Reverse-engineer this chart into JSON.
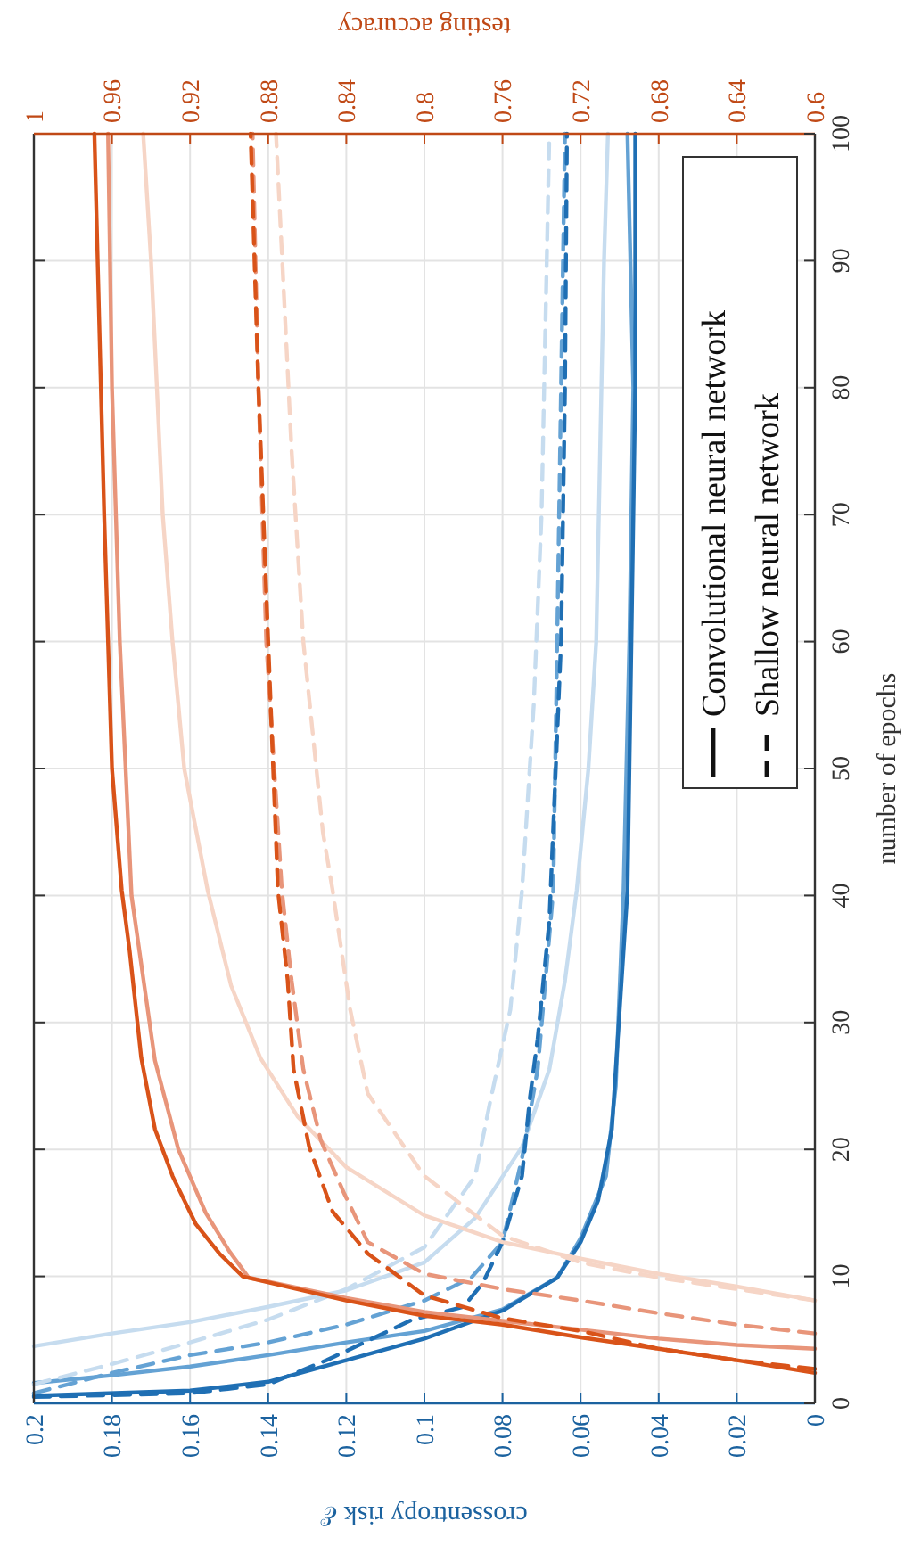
{
  "chart_data": {
    "type": "line",
    "xlabel": "crossentropy risk ℰ",
    "x2label": "testing accuracy",
    "ylabel": "number of epochs",
    "xlim": [
      0.2,
      0
    ],
    "xticks": [
      0.2,
      0.18,
      0.16,
      0.14,
      0.12,
      0.1,
      0.08,
      0.06,
      0.04,
      0.02,
      0
    ],
    "x2lim": [
      1,
      0.6
    ],
    "x2ticks": [
      1,
      0.96,
      0.92,
      0.88,
      0.84,
      0.8,
      0.76,
      0.72,
      0.68,
      0.64,
      0.6
    ],
    "ylim": [
      0,
      100
    ],
    "yticks": [
      0,
      10,
      20,
      30,
      40,
      50,
      60,
      70,
      80,
      90,
      100
    ],
    "grid": true,
    "annotations": [
      "Convolutional neural network",
      "Shallow neural network"
    ],
    "series": [
      {
        "color": "#c6dcef",
        "line_style": "solid",
        "x": [
          0.2,
          0.18,
          0.16,
          0.14,
          0.12,
          0.1,
          0.087,
          0.075,
          0.068,
          0.064,
          0.061,
          0.058,
          0.056,
          0.055,
          0.054,
          0.053
        ],
        "values": [
          4.5,
          5.5,
          6.4,
          7.6,
          8.9,
          11.1,
          14.6,
          20.2,
          26.3,
          33.3,
          40.4,
          50,
          60,
          75,
          90,
          100
        ]
      },
      {
        "color": "#64a2d4",
        "line_style": "solid",
        "x": [
          0.2,
          0.18,
          0.16,
          0.14,
          0.12,
          0.1,
          0.08,
          0.066,
          0.06,
          0.0535,
          0.051,
          0.049,
          0.0475,
          0.0465,
          0.048
        ],
        "values": [
          1.6,
          2.2,
          2.9,
          3.8,
          4.8,
          5.7,
          7.4,
          9.9,
          13,
          17.9,
          25,
          40.4,
          60,
          80,
          100
        ]
      },
      {
        "color": "#1f6fb4",
        "line_style": "solid",
        "x": [
          0.2,
          0.16,
          0.14,
          0.12,
          0.1,
          0.08,
          0.066,
          0.06,
          0.0555,
          0.052,
          0.05,
          0.048,
          0.047,
          0.046,
          0.046
        ],
        "values": [
          0.6,
          1,
          1.7,
          3.4,
          5.1,
          7.3,
          9.9,
          12.7,
          16,
          21.6,
          31,
          40.4,
          60,
          80,
          100
        ]
      },
      {
        "color": "#c6dcef",
        "line_style": "dashed",
        "x": [
          0.2,
          0.18,
          0.16,
          0.14,
          0.12,
          0.1,
          0.087,
          0.083,
          0.078,
          0.075,
          0.072,
          0.07,
          0.069,
          0.068
        ],
        "values": [
          1.5,
          3.1,
          4.8,
          6.6,
          9,
          12.3,
          17.9,
          24,
          31,
          40.4,
          55,
          70,
          85,
          100
        ]
      },
      {
        "color": "#64a2d4",
        "line_style": "dashed",
        "x": [
          0.2,
          0.18,
          0.16,
          0.14,
          0.12,
          0.1,
          0.088,
          0.08,
          0.075,
          0.071,
          0.069,
          0.067,
          0.066,
          0.065,
          0.064
        ],
        "values": [
          0.8,
          2.4,
          3.8,
          4.8,
          6.2,
          8.1,
          9.9,
          12.7,
          19.3,
          26.3,
          33.3,
          40.4,
          60,
          80,
          100
        ]
      },
      {
        "color": "#1f6fb4",
        "line_style": "dashed",
        "x": [
          0.2,
          0.16,
          0.14,
          0.125,
          0.103,
          0.09,
          0.085,
          0.08,
          0.075,
          0.073,
          0.071,
          0.068,
          0.065,
          0.064,
          0.0635
        ],
        "values": [
          0.5,
          0.8,
          1.5,
          3.4,
          6.6,
          7.6,
          9.5,
          12.7,
          17.9,
          24,
          28.7,
          38,
          60,
          80,
          100
        ]
      },
      {
        "color": "#f6d5c6",
        "line_style": "solid",
        "axis": "x2",
        "x": [
          0.6,
          0.64,
          0.68,
          0.72,
          0.76,
          0.8,
          0.84,
          0.865,
          0.884,
          0.899,
          0.911,
          0.923,
          0.929,
          0.934,
          0.94,
          0.944
        ],
        "values": [
          8.1,
          9.2,
          10.2,
          11.4,
          12.7,
          14.8,
          18.6,
          22.6,
          27.2,
          32.9,
          40.4,
          50,
          60,
          70,
          90,
          100
        ]
      },
      {
        "color": "#e8957a",
        "line_style": "solid",
        "axis": "x2",
        "x": [
          0.6,
          0.64,
          0.68,
          0.72,
          0.76,
          0.8,
          0.84,
          0.89,
          0.9,
          0.912,
          0.926,
          0.938,
          0.95,
          0.956,
          0.96,
          0.962
        ],
        "values": [
          4.3,
          4.6,
          5.1,
          5.8,
          6.5,
          7.2,
          8.3,
          9.9,
          12,
          15,
          20,
          27,
          40,
          60,
          80,
          100
        ]
      },
      {
        "color": "#d95319",
        "line_style": "solid",
        "axis": "x2",
        "x": [
          0.6,
          0.64,
          0.68,
          0.72,
          0.76,
          0.8,
          0.84,
          0.893,
          0.905,
          0.917,
          0.929,
          0.938,
          0.945,
          0.951,
          0.955,
          0.96,
          0.964,
          0.969
        ],
        "values": [
          2.4,
          3.4,
          4.3,
          5.2,
          6.2,
          6.9,
          8.1,
          10,
          11.8,
          14.1,
          17.9,
          21.6,
          27.2,
          35.7,
          40.4,
          50,
          70,
          100
        ]
      },
      {
        "color": "#f6d5c6",
        "line_style": "dashed",
        "axis": "x2",
        "x": [
          0.6,
          0.64,
          0.68,
          0.72,
          0.76,
          0.8,
          0.829,
          0.838,
          0.847,
          0.852,
          0.862,
          0.868,
          0.876
        ],
        "values": [
          8.1,
          9,
          9.9,
          11.1,
          13.2,
          17.9,
          24.4,
          31,
          40.4,
          45,
          60,
          75,
          100
        ]
      },
      {
        "color": "#e8957a",
        "line_style": "dashed",
        "axis": "x2",
        "x": [
          0.6,
          0.64,
          0.68,
          0.72,
          0.76,
          0.8,
          0.829,
          0.841,
          0.853,
          0.862,
          0.868,
          0.873,
          0.881,
          0.885,
          0.888
        ],
        "values": [
          5.5,
          6.2,
          7.1,
          8.1,
          9,
          10.2,
          12.7,
          16.5,
          20.7,
          26.3,
          33.3,
          40.4,
          60,
          80,
          100
        ]
      },
      {
        "color": "#d95319",
        "line_style": "dashed",
        "axis": "x2",
        "x": [
          0.6,
          0.64,
          0.68,
          0.72,
          0.76,
          0.8,
          0.829,
          0.847,
          0.859,
          0.867,
          0.87,
          0.875,
          0.88,
          0.885,
          0.889
        ],
        "values": [
          2.7,
          3.4,
          4.3,
          5.7,
          6.7,
          8.5,
          11.8,
          15.1,
          20.2,
          26.3,
          33.3,
          40.4,
          60,
          80,
          100
        ]
      }
    ]
  }
}
